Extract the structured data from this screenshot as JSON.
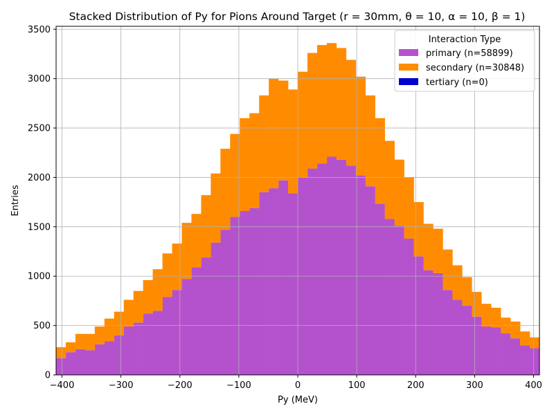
{
  "chart_data": {
    "type": "bar",
    "stacked": true,
    "title": "Stacked Distribution of Py for Pions Around Target (r = 30mm, θ = 10, α = 10, β = 1)",
    "xlabel": "Py (MeV)",
    "ylabel": "Entries",
    "xlim": [
      -410,
      410
    ],
    "ylim": [
      0,
      3530
    ],
    "xticks": [
      -400,
      -300,
      -200,
      -100,
      0,
      100,
      200,
      300,
      400
    ],
    "yticks": [
      0,
      500,
      1000,
      1500,
      2000,
      2500,
      3000,
      3500
    ],
    "grid": true,
    "legend": {
      "title": "Interaction Type",
      "placement": "top-right"
    },
    "bins": {
      "start": -410,
      "width": 16.4,
      "count": 50
    },
    "series": [
      {
        "name": "primary (n=58899)",
        "color": "#b452cd",
        "values": [
          170,
          230,
          260,
          250,
          310,
          340,
          400,
          490,
          530,
          620,
          650,
          790,
          860,
          970,
          1090,
          1190,
          1340,
          1470,
          1600,
          1660,
          1690,
          1850,
          1890,
          1970,
          1840,
          2000,
          2090,
          2140,
          2210,
          2180,
          2120,
          2020,
          1910,
          1730,
          1580,
          1510,
          1380,
          1200,
          1060,
          1030,
          860,
          760,
          700,
          590,
          490,
          480,
          420,
          370,
          300,
          270
        ]
      },
      {
        "name": "secondary (n=30848)",
        "color": "#ff8c00",
        "values": [
          110,
          100,
          155,
          165,
          180,
          230,
          240,
          270,
          320,
          340,
          420,
          440,
          470,
          570,
          540,
          630,
          700,
          820,
          840,
          940,
          960,
          980,
          1110,
          1010,
          1050,
          1070,
          1170,
          1200,
          1150,
          1130,
          1070,
          1000,
          920,
          870,
          790,
          670,
          620,
          550,
          470,
          450,
          410,
          350,
          290,
          250,
          230,
          200,
          160,
          170,
          140,
          110
        ]
      },
      {
        "name": "tertiary (n=0)",
        "color": "#0000cd",
        "values": [
          0,
          0,
          0,
          0,
          0,
          0,
          0,
          0,
          0,
          0,
          0,
          0,
          0,
          0,
          0,
          0,
          0,
          0,
          0,
          0,
          0,
          0,
          0,
          0,
          0,
          0,
          0,
          0,
          0,
          0,
          0,
          0,
          0,
          0,
          0,
          0,
          0,
          0,
          0,
          0,
          0,
          0,
          0,
          0,
          0,
          0,
          0,
          0,
          0,
          0
        ]
      }
    ]
  }
}
